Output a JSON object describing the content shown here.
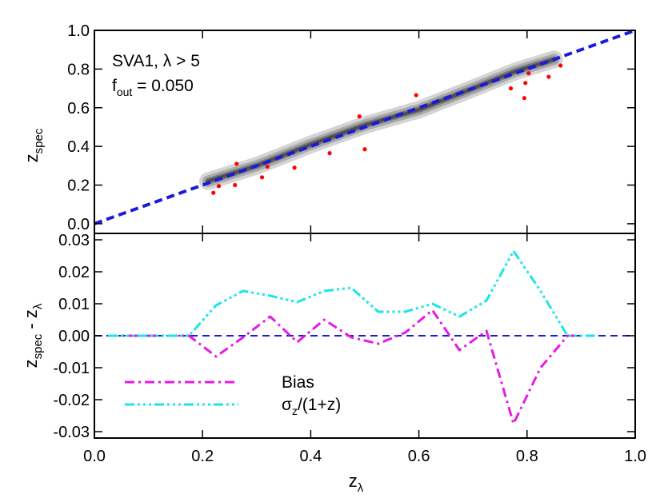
{
  "chart_data": [
    {
      "type": "scatter",
      "panel": "top",
      "annotations": {
        "line1": "SVA1, λ > 5",
        "line2_base": "f",
        "line2_sub": "out",
        "line2_rest": " = 0.050"
      },
      "ylabel_base": "z",
      "ylabel_sub": "spec",
      "xlim": [
        0.0,
        1.0
      ],
      "ylim": [
        -0.05,
        1.0
      ],
      "x_ticks": [
        0.0,
        0.2,
        0.4,
        0.6,
        0.8,
        1.0
      ],
      "x_tick_labels": [
        "",
        "",
        "",
        "",
        "",
        ""
      ],
      "y_ticks": [
        0.0,
        0.2,
        0.4,
        0.6,
        0.8,
        1.0
      ],
      "y_tick_labels": [
        "0.0",
        "0.2",
        "0.4",
        "0.6",
        "0.8",
        "1.0"
      ],
      "grid": false,
      "reference_line": {
        "x": [
          0.0,
          1.0
        ],
        "y": [
          0.0,
          1.0
        ],
        "color": "#1a1adb",
        "style": "dashed"
      },
      "density_contours": {
        "colors": [
          "#d4d4d4",
          "#aaaaaa",
          "#7d7d7d",
          "#4f4f4f"
        ],
        "ridge": [
          [
            0.21,
            0.22
          ],
          [
            0.3,
            0.3
          ],
          [
            0.4,
            0.41
          ],
          [
            0.5,
            0.51
          ],
          [
            0.6,
            0.59
          ],
          [
            0.7,
            0.7
          ],
          [
            0.78,
            0.79
          ],
          [
            0.85,
            0.85
          ]
        ]
      },
      "outliers": {
        "color": "#ff0000",
        "points": [
          {
            "x": 0.22,
            "y": 0.16
          },
          {
            "x": 0.23,
            "y": 0.195
          },
          {
            "x": 0.26,
            "y": 0.2
          },
          {
            "x": 0.263,
            "y": 0.31
          },
          {
            "x": 0.31,
            "y": 0.24
          },
          {
            "x": 0.32,
            "y": 0.295
          },
          {
            "x": 0.37,
            "y": 0.29
          },
          {
            "x": 0.435,
            "y": 0.365
          },
          {
            "x": 0.49,
            "y": 0.555
          },
          {
            "x": 0.5,
            "y": 0.385
          },
          {
            "x": 0.595,
            "y": 0.665
          },
          {
            "x": 0.77,
            "y": 0.7
          },
          {
            "x": 0.795,
            "y": 0.65
          },
          {
            "x": 0.797,
            "y": 0.728
          },
          {
            "x": 0.803,
            "y": 0.778
          },
          {
            "x": 0.84,
            "y": 0.76
          },
          {
            "x": 0.862,
            "y": 0.818
          }
        ]
      }
    },
    {
      "type": "line",
      "panel": "bottom",
      "xlabel_base": "z",
      "xlabel_sub": "λ",
      "ylabel_parts": [
        "z",
        "spec",
        " - z",
        "λ"
      ],
      "xlim": [
        0.0,
        1.0
      ],
      "ylim": [
        -0.032,
        0.032
      ],
      "x_ticks": [
        0.0,
        0.2,
        0.4,
        0.6,
        0.8,
        1.0
      ],
      "x_tick_labels": [
        "0.0",
        "0.2",
        "0.4",
        "0.6",
        "0.8",
        "1.0"
      ],
      "y_ticks": [
        -0.03,
        -0.02,
        -0.01,
        0.0,
        0.01,
        0.02,
        0.03
      ],
      "y_tick_labels": [
        "-0.03",
        "-0.02",
        "-0.01",
        "0.00",
        "0.01",
        "0.02",
        "0.03"
      ],
      "grid": false,
      "legend_position": "bottom-left",
      "zero_line": {
        "y": 0.0,
        "color": "#1a1adb",
        "style": "dashed"
      },
      "series": [
        {
          "name": "Bias",
          "legend_base": "Bias",
          "legend_sub": "",
          "legend_rest": "",
          "color": "#e619e6",
          "style": "dash-dot",
          "x": [
            0.025,
            0.075,
            0.125,
            0.175,
            0.225,
            0.275,
            0.325,
            0.375,
            0.425,
            0.475,
            0.525,
            0.575,
            0.625,
            0.675,
            0.725,
            0.775,
            0.825,
            0.875,
            0.925
          ],
          "y": [
            0.0,
            0.0,
            0.0,
            0.0,
            -0.0065,
            -0.0005,
            0.006,
            -0.002,
            0.005,
            -0.0005,
            -0.0025,
            0.001,
            0.008,
            -0.0045,
            0.0015,
            -0.0275,
            -0.01,
            0.0,
            0.0
          ]
        },
        {
          "name": "σz/(1+z)",
          "legend_base": "σ",
          "legend_sub": "z",
          "legend_rest": "/(1+z)",
          "color": "#19e6e6",
          "style": "dash-dot-dot-dot",
          "x": [
            0.025,
            0.075,
            0.125,
            0.175,
            0.225,
            0.275,
            0.325,
            0.375,
            0.425,
            0.475,
            0.525,
            0.575,
            0.625,
            0.675,
            0.725,
            0.775,
            0.825,
            0.875,
            0.925
          ],
          "y": [
            0.0,
            0.0,
            0.0,
            0.0,
            0.0095,
            0.014,
            0.0125,
            0.0105,
            0.014,
            0.015,
            0.0075,
            0.0075,
            0.01,
            0.006,
            0.011,
            0.0265,
            0.014,
            0.0,
            0.0
          ]
        }
      ]
    }
  ]
}
